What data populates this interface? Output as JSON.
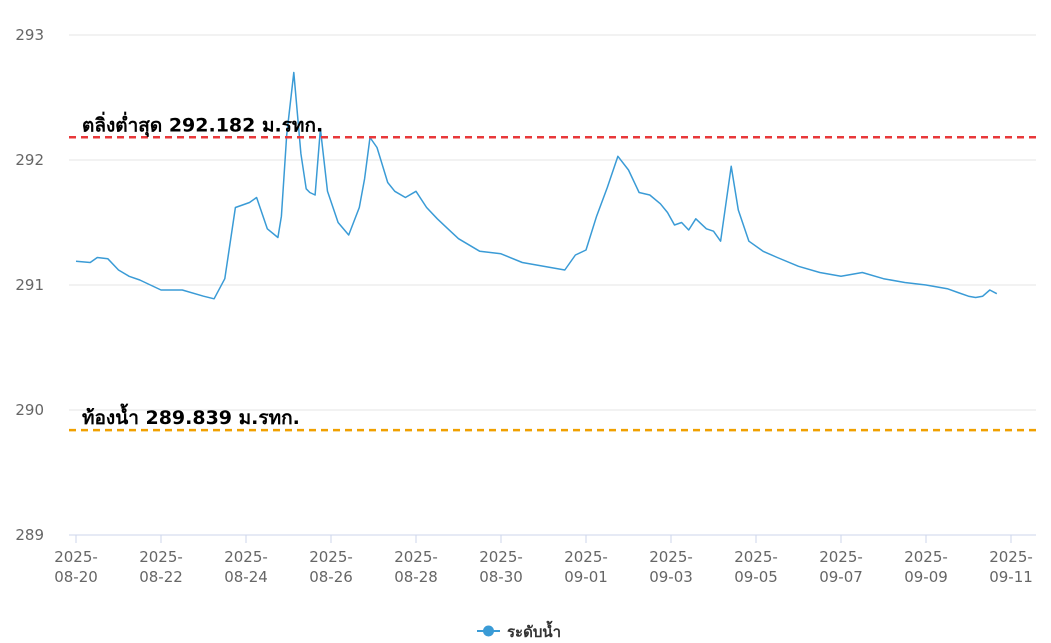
{
  "chart_data": {
    "type": "line",
    "title": "",
    "xlabel": "",
    "ylabel": "",
    "ylim": [
      289,
      293
    ],
    "yticks": [
      289,
      290,
      291,
      292,
      293
    ],
    "x_tick_labels": [
      [
        "2025-",
        "08-20"
      ],
      [
        "2025-",
        "08-22"
      ],
      [
        "2025-",
        "08-24"
      ],
      [
        "2025-",
        "08-26"
      ],
      [
        "2025-",
        "08-28"
      ],
      [
        "2025-",
        "08-30"
      ],
      [
        "2025-",
        "09-01"
      ],
      [
        "2025-",
        "09-03"
      ],
      [
        "2025-",
        "09-05"
      ],
      [
        "2025-",
        "09-07"
      ],
      [
        "2025-",
        "09-09"
      ],
      [
        "2025-",
        "09-11"
      ]
    ],
    "grid": true,
    "legend_position": "bottom-center",
    "series": [
      {
        "name": "ระดับน้ำ",
        "color": "#3a9bd6",
        "x": [
          "2025-08-20 00:00",
          "2025-08-20 08:00",
          "2025-08-20 12:00",
          "2025-08-20 18:00",
          "2025-08-21 00:00",
          "2025-08-21 06:00",
          "2025-08-21 12:00",
          "2025-08-21 18:00",
          "2025-08-22 00:00",
          "2025-08-22 12:00",
          "2025-08-23 00:00",
          "2025-08-23 06:00",
          "2025-08-23 12:00",
          "2025-08-23 18:00",
          "2025-08-23 22:00",
          "2025-08-24 02:00",
          "2025-08-24 06:00",
          "2025-08-24 12:00",
          "2025-08-24 18:00",
          "2025-08-24 20:00",
          "2025-08-24 23:00",
          "2025-08-25 03:00",
          "2025-08-25 07:00",
          "2025-08-25 10:00",
          "2025-08-25 12:00",
          "2025-08-25 15:00",
          "2025-08-25 18:00",
          "2025-08-25 22:00",
          "2025-08-26 04:00",
          "2025-08-26 10:00",
          "2025-08-26 16:00",
          "2025-08-26 19:00",
          "2025-08-26 22:00",
          "2025-08-27 02:00",
          "2025-08-27 08:00",
          "2025-08-27 12:00",
          "2025-08-27 18:00",
          "2025-08-28 00:00",
          "2025-08-28 06:00",
          "2025-08-28 12:00",
          "2025-08-28 18:00",
          "2025-08-29 00:00",
          "2025-08-29 12:00",
          "2025-08-30 00:00",
          "2025-08-30 12:00",
          "2025-08-31 00:00",
          "2025-08-31 12:00",
          "2025-08-31 18:00",
          "2025-09-01 00:00",
          "2025-09-01 06:00",
          "2025-09-01 12:00",
          "2025-09-01 18:00",
          "2025-09-02 00:00",
          "2025-09-02 06:00",
          "2025-09-02 12:00",
          "2025-09-02 18:00",
          "2025-09-02 22:00",
          "2025-09-03 02:00",
          "2025-09-03 06:00",
          "2025-09-03 10:00",
          "2025-09-03 14:00",
          "2025-09-03 20:00",
          "2025-09-04 00:00",
          "2025-09-04 04:00",
          "2025-09-04 10:00",
          "2025-09-04 14:00",
          "2025-09-04 20:00",
          "2025-09-05 04:00",
          "2025-09-05 12:00",
          "2025-09-06 00:00",
          "2025-09-06 12:00",
          "2025-09-07 00:00",
          "2025-09-07 12:00",
          "2025-09-08 00:00",
          "2025-09-08 12:00",
          "2025-09-09 00:00",
          "2025-09-09 12:00",
          "2025-09-09 18:00",
          "2025-09-10 00:00",
          "2025-09-10 04:00",
          "2025-09-10 08:00",
          "2025-09-10 12:00",
          "2025-09-10 16:00"
        ],
        "values": [
          291.19,
          291.18,
          291.22,
          291.21,
          291.12,
          291.07,
          291.04,
          291.0,
          290.96,
          290.96,
          290.91,
          290.89,
          291.05,
          291.62,
          291.64,
          291.66,
          291.7,
          291.45,
          291.38,
          291.55,
          292.2,
          292.7,
          292.05,
          291.77,
          291.74,
          291.72,
          292.25,
          291.75,
          291.5,
          291.4,
          291.62,
          291.85,
          292.18,
          292.1,
          291.82,
          291.75,
          291.7,
          291.75,
          291.62,
          291.53,
          291.45,
          291.37,
          291.27,
          291.25,
          291.18,
          291.15,
          291.12,
          291.24,
          291.28,
          291.55,
          291.78,
          292.03,
          291.92,
          291.74,
          291.72,
          291.65,
          291.58,
          291.48,
          291.5,
          291.44,
          291.53,
          291.45,
          291.43,
          291.35,
          291.95,
          291.6,
          291.35,
          291.27,
          291.22,
          291.15,
          291.1,
          291.07,
          291.1,
          291.05,
          291.02,
          291.0,
          290.97,
          290.94,
          290.91,
          290.9,
          290.91,
          290.96,
          290.93
        ]
      }
    ],
    "reference_lines": [
      {
        "value": 292.182,
        "label": "ตลิ่งต่ำสุด 292.182 ม.รทก.",
        "color": "#e8383a"
      },
      {
        "value": 289.839,
        "label": "ท้องน้ำ 289.839 ม.รทก.",
        "color": "#f0a000"
      }
    ]
  }
}
